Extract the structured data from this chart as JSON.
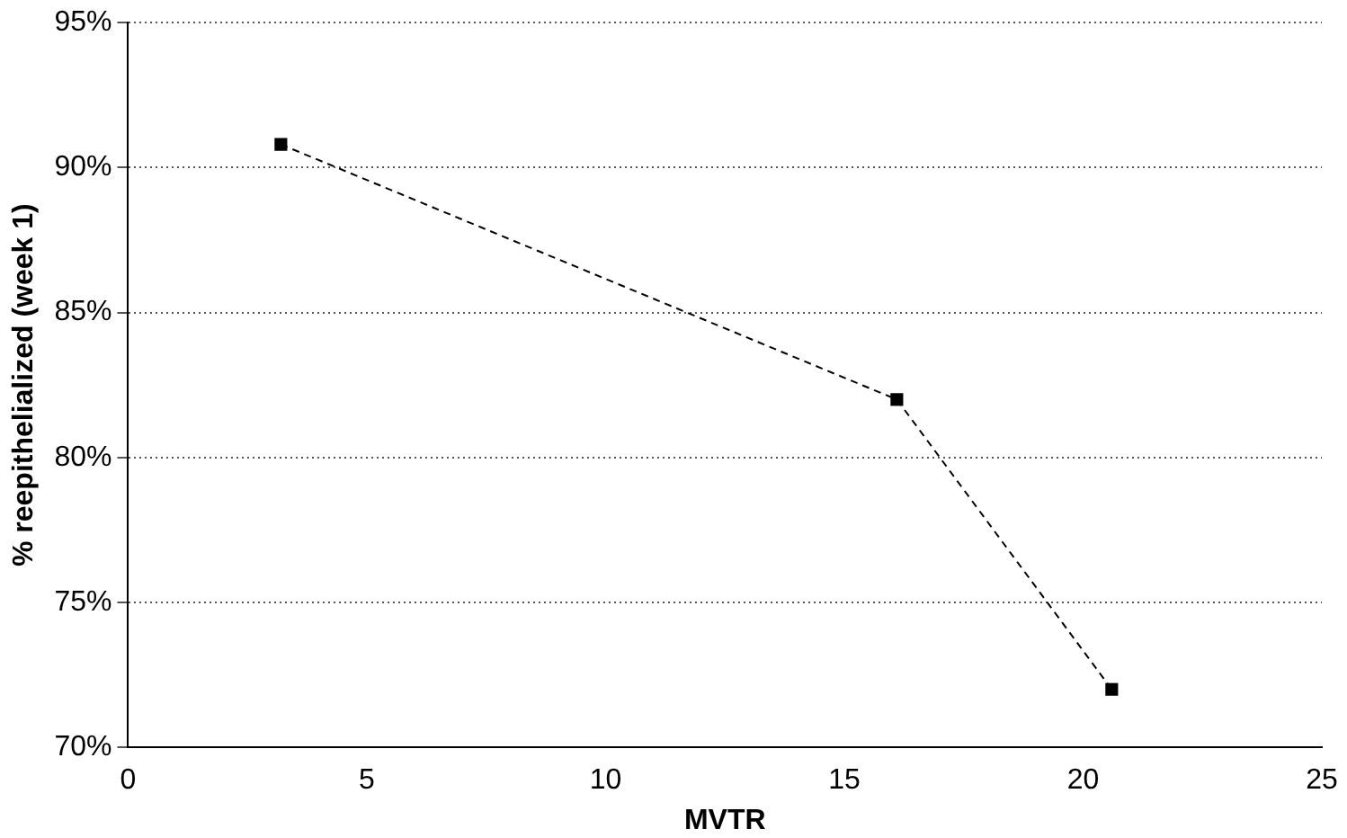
{
  "chart_data": {
    "type": "line",
    "xlabel": "MVTR",
    "ylabel": "% reepithelialized (week 1)",
    "x": [
      3.2,
      16.1,
      20.6
    ],
    "series": [
      {
        "color": "#000000",
        "values": [
          90.8,
          82,
          72
        ]
      }
    ],
    "xlim": [
      0,
      25
    ],
    "xticks": [
      0,
      5,
      10,
      15,
      20,
      25
    ],
    "ylim": [
      70,
      95
    ],
    "yticks": [
      {
        "value": 70,
        "label": "70%"
      },
      {
        "value": 75,
        "label": "75%"
      },
      {
        "value": 80,
        "label": "80%"
      },
      {
        "value": 85,
        "label": "85%"
      },
      {
        "value": 90,
        "label": "90%"
      },
      {
        "value": 95,
        "label": "95%"
      }
    ],
    "grid": "y",
    "legend": false,
    "marker": "square",
    "line_style": "dashed"
  }
}
